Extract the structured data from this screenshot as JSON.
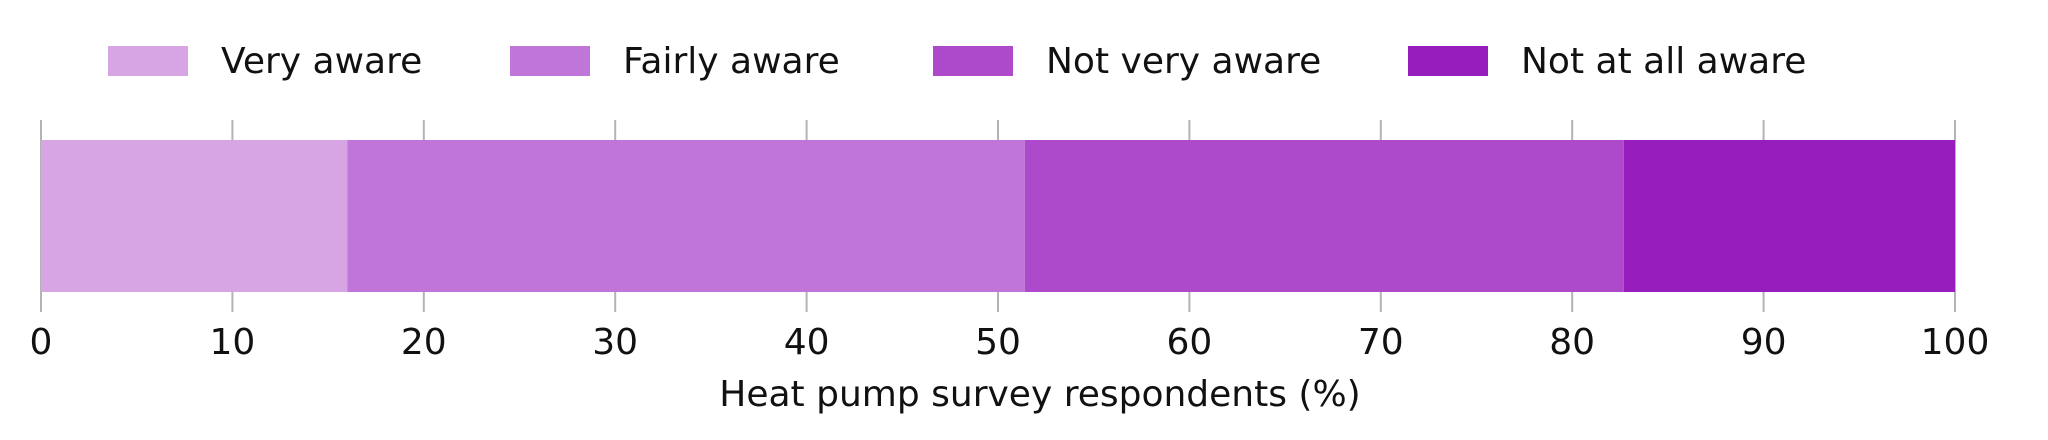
{
  "chart_data": {
    "type": "bar",
    "orientation": "horizontal-stacked",
    "title": "",
    "xlabel": "Heat pump survey respondents (%)",
    "ylabel": "",
    "xlim": [
      0,
      100
    ],
    "ticks": [
      0,
      10,
      20,
      30,
      40,
      50,
      60,
      70,
      80,
      90,
      100
    ],
    "grid": false,
    "legend_position": "top",
    "series": [
      {
        "name": "Very aware",
        "value": 16,
        "color": "#d7a4e4"
      },
      {
        "name": "Fairly aware",
        "value": 35.4,
        "color": "#c076d8"
      },
      {
        "name": "Not very aware",
        "value": 31.3,
        "color": "#ad49cb"
      },
      {
        "name": "Not at all aware",
        "value": 17.3,
        "color": "#981dbd"
      }
    ]
  }
}
